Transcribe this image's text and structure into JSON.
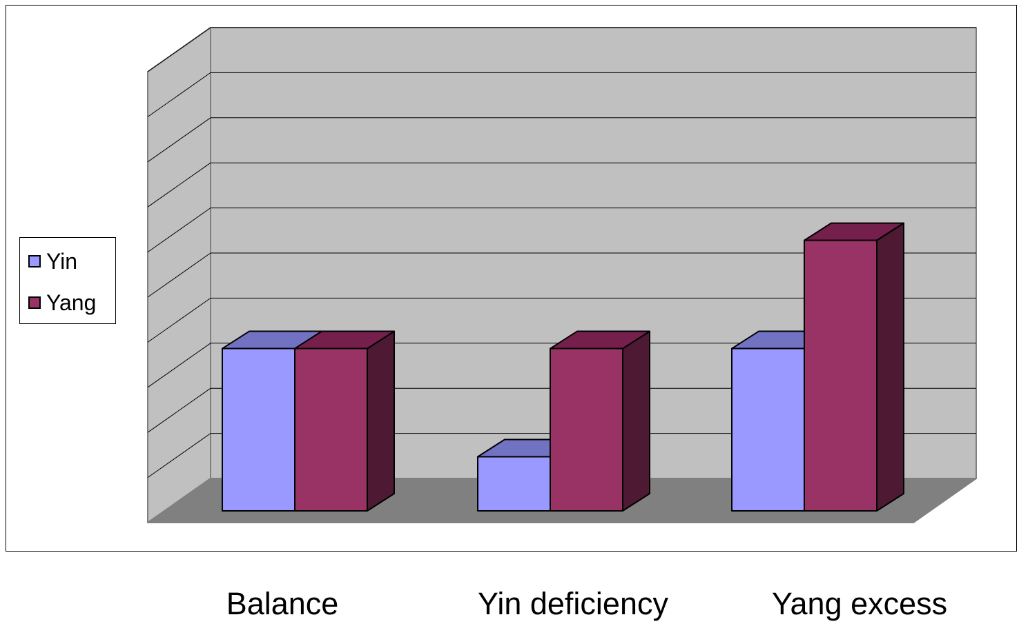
{
  "chart_data": {
    "type": "bar",
    "style": "3d-clustered-column",
    "categories": [
      "Balance",
      "Yin deficiency",
      "Yang excess"
    ],
    "series": [
      {
        "name": "Yin",
        "values": [
          6,
          2,
          6
        ],
        "color": "#9999ff",
        "top_color": "#7272c2",
        "side_color": "#6b6bb8"
      },
      {
        "name": "Yang",
        "values": [
          6,
          6,
          10
        ],
        "color": "#993366",
        "top_color": "#75204c",
        "side_color": "#4d1933"
      }
    ],
    "ylim": [
      0,
      10
    ],
    "gridlines": true,
    "legend_position": "left",
    "wall_color": "#c0c0c0",
    "floor_color": "#808080",
    "title": "",
    "xlabel": "",
    "ylabel": ""
  }
}
